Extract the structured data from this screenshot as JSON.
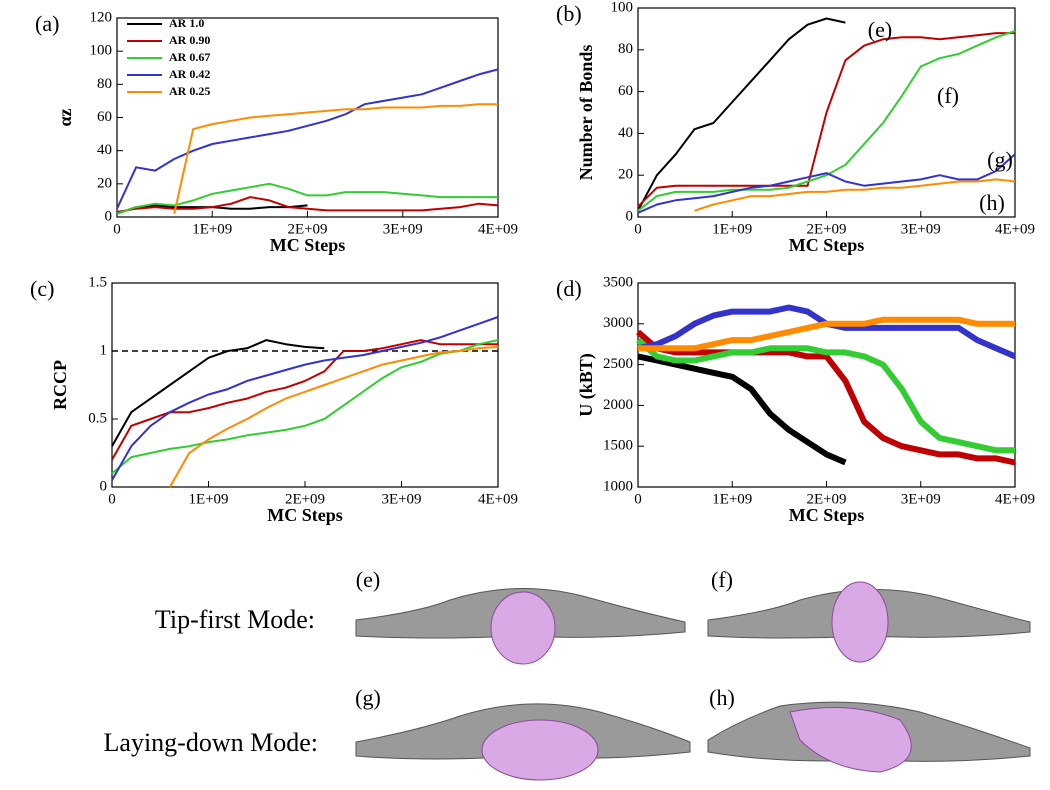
{
  "chart_data": [
    {
      "type": "line",
      "panel_label": "(a)",
      "x_label": "MC Steps",
      "y_label": "αz",
      "legend": "upper left",
      "x": [
        0,
        200000000,
        400000000,
        600000000,
        800000000,
        1000000000,
        1200000000,
        1400000000,
        1600000000,
        1800000000,
        2000000000,
        2200000000,
        2400000000,
        2600000000,
        2800000000,
        3000000000,
        3200000000,
        3400000000,
        3600000000,
        3800000000,
        4000000000
      ],
      "xlim": [
        0,
        4000000000
      ],
      "xticks": [
        0,
        {
          "value": 1000000000,
          "label": "1E+09"
        },
        {
          "value": 2000000000,
          "label": "2E+09"
        },
        {
          "value": 3000000000,
          "label": "3E+09"
        },
        {
          "value": 4000000000,
          "label": "4E+09"
        }
      ],
      "ylim": [
        0,
        120
      ],
      "yticks": [
        0,
        20,
        40,
        60,
        80,
        100,
        120
      ],
      "series": [
        {
          "name": "AR 1.0",
          "color": "#000000",
          "values": [
            2,
            6,
            7,
            6,
            6,
            6,
            5,
            5,
            6,
            6,
            7,
            null,
            null,
            null,
            null,
            null,
            null,
            null,
            null,
            null,
            null
          ]
        },
        {
          "name": "AR 0.90",
          "color": "#c00000",
          "values": [
            3,
            5,
            6,
            5,
            5,
            6,
            8,
            12,
            10,
            6,
            5,
            4,
            4,
            4,
            4,
            4,
            4,
            5,
            6,
            8,
            7
          ]
        },
        {
          "name": "AR 0.67",
          "color": "#33cc33",
          "values": [
            2,
            6,
            8,
            7,
            10,
            14,
            16,
            18,
            20,
            17,
            13,
            13,
            15,
            15,
            15,
            14,
            13,
            12,
            12,
            12,
            12
          ]
        },
        {
          "name": "AR 0.42",
          "color": "#3333cc",
          "values": [
            5,
            30,
            28,
            35,
            40,
            44,
            46,
            48,
            50,
            52,
            55,
            58,
            62,
            68,
            70,
            72,
            74,
            78,
            82,
            86,
            89
          ]
        },
        {
          "name": "AR 0.25",
          "color": "#ff8c00",
          "values": [
            null,
            null,
            null,
            2,
            53,
            56,
            58,
            60,
            61,
            62,
            63,
            64,
            65,
            65,
            66,
            66,
            66,
            67,
            67,
            68,
            68
          ]
        }
      ]
    },
    {
      "type": "line",
      "panel_label": "(b)",
      "x_label": "MC Steps",
      "y_label": "Number of Bonds",
      "annotations": [
        "(e)",
        "(f)",
        "(g)",
        "(h)"
      ],
      "x": [
        0,
        200000000,
        400000000,
        600000000,
        800000000,
        1000000000,
        1200000000,
        1400000000,
        1600000000,
        1800000000,
        2000000000,
        2200000000,
        2400000000,
        2600000000,
        2800000000,
        3000000000,
        3200000000,
        3400000000,
        3600000000,
        3800000000,
        4000000000
      ],
      "xlim": [
        0,
        4000000000
      ],
      "xticks": [
        0,
        {
          "value": 1000000000,
          "label": "1E+09"
        },
        {
          "value": 2000000000,
          "label": "2E+09"
        },
        {
          "value": 3000000000,
          "label": "3E+09"
        },
        {
          "value": 4000000000,
          "label": "4E+09"
        }
      ],
      "ylim": [
        0,
        100
      ],
      "yticks": [
        0,
        20,
        40,
        60,
        80,
        100
      ],
      "series": [
        {
          "name": "AR 1.0",
          "color": "#000000",
          "values": [
            3,
            20,
            30,
            42,
            45,
            55,
            65,
            75,
            85,
            92,
            95,
            93,
            null,
            null,
            null,
            null,
            null,
            null,
            null,
            null,
            null
          ]
        },
        {
          "name": "AR 0.90",
          "color": "#c00000",
          "values": [
            5,
            14,
            15,
            15,
            15,
            15,
            15,
            15,
            15,
            15,
            50,
            75,
            82,
            85,
            86,
            86,
            85,
            86,
            87,
            88,
            88
          ]
        },
        {
          "name": "AR 0.67",
          "color": "#33cc33",
          "values": [
            3,
            10,
            12,
            12,
            12,
            13,
            13,
            13,
            14,
            17,
            20,
            25,
            35,
            45,
            58,
            72,
            76,
            78,
            82,
            86,
            89
          ]
        },
        {
          "name": "AR 0.42",
          "color": "#3333cc",
          "values": [
            2,
            6,
            8,
            9,
            10,
            12,
            14,
            15,
            17,
            19,
            21,
            17,
            15,
            16,
            17,
            18,
            20,
            18,
            18,
            22,
            30
          ]
        },
        {
          "name": "AR 0.25",
          "color": "#ff8c00",
          "values": [
            null,
            null,
            null,
            3,
            6,
            8,
            10,
            10,
            11,
            12,
            12,
            13,
            13,
            14,
            14,
            15,
            16,
            17,
            17,
            18,
            17
          ]
        }
      ]
    },
    {
      "type": "line",
      "panel_label": "(c)",
      "x_label": "MC Steps",
      "y_label": "RCCP",
      "reference_line": 1,
      "x": [
        0,
        200000000,
        400000000,
        600000000,
        800000000,
        1000000000,
        1200000000,
        1400000000,
        1600000000,
        1800000000,
        2000000000,
        2200000000,
        2400000000,
        2600000000,
        2800000000,
        3000000000,
        3200000000,
        3400000000,
        3600000000,
        3800000000,
        4000000000
      ],
      "xlim": [
        0,
        4000000000
      ],
      "xticks": [
        0,
        {
          "value": 1000000000,
          "label": "1E+09"
        },
        {
          "value": 2000000000,
          "label": "2E+09"
        },
        {
          "value": 3000000000,
          "label": "3E+09"
        },
        {
          "value": 4000000000,
          "label": "4E+09"
        }
      ],
      "ylim": [
        0,
        1.5
      ],
      "yticks": [
        0,
        0.5,
        1,
        1.5
      ],
      "series": [
        {
          "name": "AR 1.0",
          "color": "#000000",
          "values": [
            0.3,
            0.55,
            0.65,
            0.75,
            0.85,
            0.95,
            1.0,
            1.02,
            1.08,
            1.05,
            1.03,
            1.02,
            null,
            null,
            null,
            null,
            null,
            null,
            null,
            null,
            null
          ]
        },
        {
          "name": "AR 0.90",
          "color": "#c00000",
          "values": [
            0.2,
            0.45,
            0.5,
            0.55,
            0.55,
            0.58,
            0.62,
            0.65,
            0.7,
            0.73,
            0.78,
            0.85,
            1.0,
            1.0,
            1.02,
            1.05,
            1.08,
            1.05,
            1.05,
            1.05,
            1.05
          ]
        },
        {
          "name": "AR 0.67",
          "color": "#33cc33",
          "values": [
            0.1,
            0.22,
            0.25,
            0.28,
            0.3,
            0.33,
            0.35,
            0.38,
            0.4,
            0.42,
            0.45,
            0.5,
            0.6,
            0.7,
            0.8,
            0.88,
            0.92,
            0.98,
            1.0,
            1.05,
            1.08
          ]
        },
        {
          "name": "AR 0.42",
          "color": "#3333cc",
          "values": [
            0.05,
            0.3,
            0.45,
            0.55,
            0.62,
            0.68,
            0.72,
            0.78,
            0.82,
            0.86,
            0.9,
            0.93,
            0.95,
            0.97,
            1.0,
            1.03,
            1.06,
            1.1,
            1.15,
            1.2,
            1.25
          ]
        },
        {
          "name": "AR 0.25",
          "color": "#ff8c00",
          "values": [
            null,
            null,
            null,
            0,
            0.25,
            0.35,
            0.43,
            0.5,
            0.58,
            0.65,
            0.7,
            0.75,
            0.8,
            0.85,
            0.9,
            0.93,
            0.96,
            0.99,
            1.0,
            1.02,
            1.03
          ]
        }
      ]
    },
    {
      "type": "line",
      "panel_label": "(d)",
      "x_label": "MC Steps",
      "y_label": "U (kBT)",
      "x": [
        0,
        200000000,
        400000000,
        600000000,
        800000000,
        1000000000,
        1200000000,
        1400000000,
        1600000000,
        1800000000,
        2000000000,
        2200000000,
        2400000000,
        2600000000,
        2800000000,
        3000000000,
        3200000000,
        3400000000,
        3600000000,
        3800000000,
        4000000000
      ],
      "xlim": [
        0,
        4000000000
      ],
      "xticks": [
        0,
        {
          "value": 1000000000,
          "label": "1E+09"
        },
        {
          "value": 2000000000,
          "label": "2E+09"
        },
        {
          "value": 3000000000,
          "label": "3E+09"
        },
        {
          "value": 4000000000,
          "label": "4E+09"
        }
      ],
      "ylim": [
        1000,
        3500
      ],
      "yticks": [
        1000,
        1500,
        2000,
        2500,
        3000,
        3500
      ],
      "series": [
        {
          "name": "AR 1.0",
          "color": "#000000",
          "values": [
            2600,
            2550,
            2500,
            2450,
            2400,
            2350,
            2200,
            1900,
            1700,
            1550,
            1400,
            1300,
            null,
            null,
            null,
            null,
            null,
            null,
            null,
            null,
            null
          ]
        },
        {
          "name": "AR 0.90",
          "color": "#c00000",
          "values": [
            2900,
            2700,
            2650,
            2650,
            2650,
            2650,
            2650,
            2650,
            2650,
            2600,
            2600,
            2300,
            1800,
            1600,
            1500,
            1450,
            1400,
            1400,
            1350,
            1350,
            1300
          ]
        },
        {
          "name": "AR 0.67",
          "color": "#33cc33",
          "values": [
            2800,
            2600,
            2550,
            2550,
            2600,
            2650,
            2650,
            2700,
            2700,
            2700,
            2650,
            2650,
            2600,
            2500,
            2200,
            1800,
            1600,
            1550,
            1500,
            1450,
            1450
          ]
        },
        {
          "name": "AR 0.42",
          "color": "#3333cc",
          "values": [
            2700,
            2750,
            2850,
            3000,
            3100,
            3150,
            3150,
            3150,
            3200,
            3150,
            3000,
            2950,
            2950,
            2950,
            2950,
            2950,
            2950,
            2950,
            2800,
            2700,
            2600
          ]
        },
        {
          "name": "AR 0.25",
          "color": "#ff8c00",
          "values": [
            2700,
            2700,
            2700,
            2700,
            2750,
            2800,
            2800,
            2850,
            2900,
            2950,
            3000,
            3000,
            3000,
            3050,
            3050,
            3050,
            3050,
            3050,
            3000,
            3000,
            3000
          ]
        }
      ]
    }
  ],
  "figure_images": {
    "rows": [
      {
        "label": "Tip-first Mode:",
        "panels": [
          "(e)",
          "(f)"
        ]
      },
      {
        "label": "Laying-down Mode:",
        "panels": [
          "(g)",
          "(h)"
        ]
      }
    ]
  }
}
